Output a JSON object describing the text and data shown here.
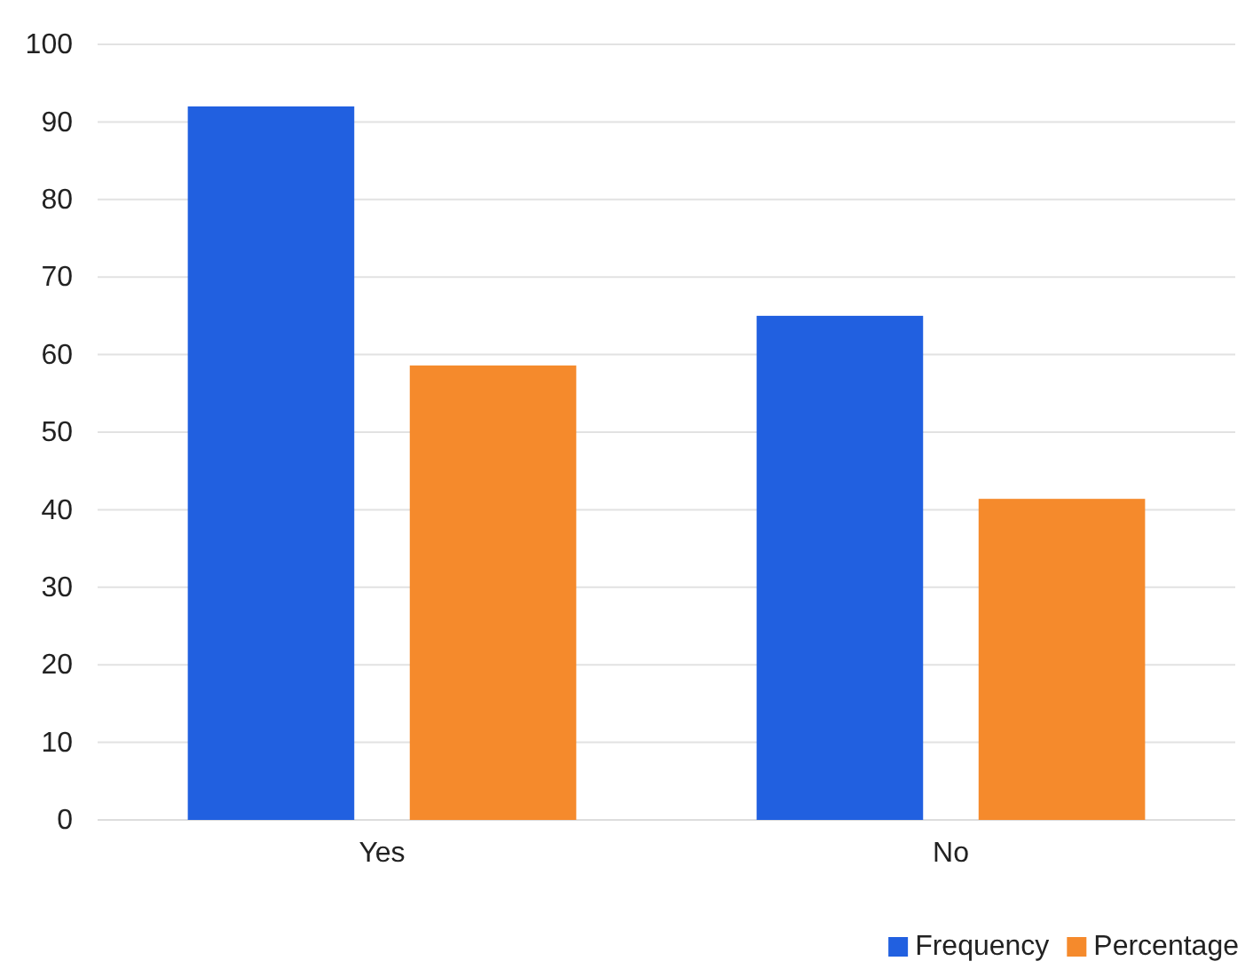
{
  "chart_data": {
    "type": "bar",
    "categories": [
      "Yes",
      "No"
    ],
    "series": [
      {
        "name": "Frequency",
        "color": "#2160e0",
        "values": [
          92,
          65
        ]
      },
      {
        "name": "Percentage",
        "color": "#f58a2c",
        "values": [
          58.6,
          41.4
        ]
      }
    ],
    "ylim": [
      0,
      100
    ],
    "yticks": [
      0,
      10,
      20,
      30,
      40,
      50,
      60,
      70,
      80,
      90,
      100
    ],
    "grid": "y",
    "legend": "bottom right"
  }
}
